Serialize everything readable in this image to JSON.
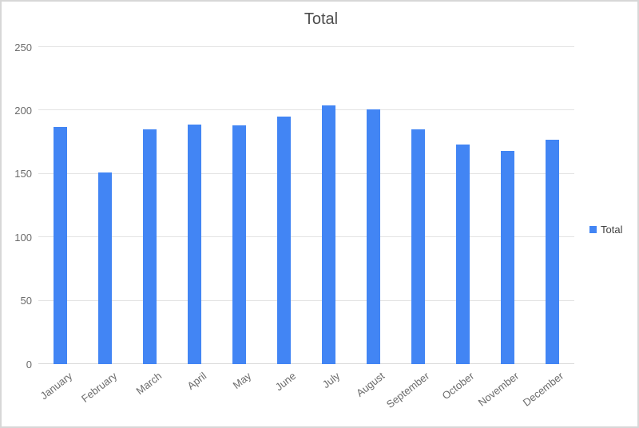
{
  "chart": {
    "title": "Total",
    "legend": {
      "label": "Total"
    },
    "colors": {
      "bar": "#4285f4",
      "gridline": "#e3e3e3",
      "baseline": "#d9d9d9",
      "axis_text": "#6b6b6b",
      "title_text": "#4d4d4d",
      "legend_text": "#424242",
      "frame_border": "#d7d7d7",
      "background": "#ffffff"
    }
  },
  "chart_data": {
    "type": "bar",
    "title": "Total",
    "categories": [
      "January",
      "February",
      "March",
      "April",
      "May",
      "June",
      "July",
      "August",
      "September",
      "October",
      "November",
      "December"
    ],
    "series": [
      {
        "name": "Total",
        "values": [
          187,
          151,
          185,
          189,
          188,
          195,
          204,
          201,
          185,
          173,
          168,
          177
        ]
      }
    ],
    "xlabel": "",
    "ylabel": "",
    "ylim": [
      0,
      250
    ],
    "yticks": [
      0,
      50,
      100,
      150,
      200,
      250
    ],
    "grid": true,
    "legend_position": "right",
    "bar_color": "#4285f4",
    "x_label_rotation_deg": -38
  }
}
